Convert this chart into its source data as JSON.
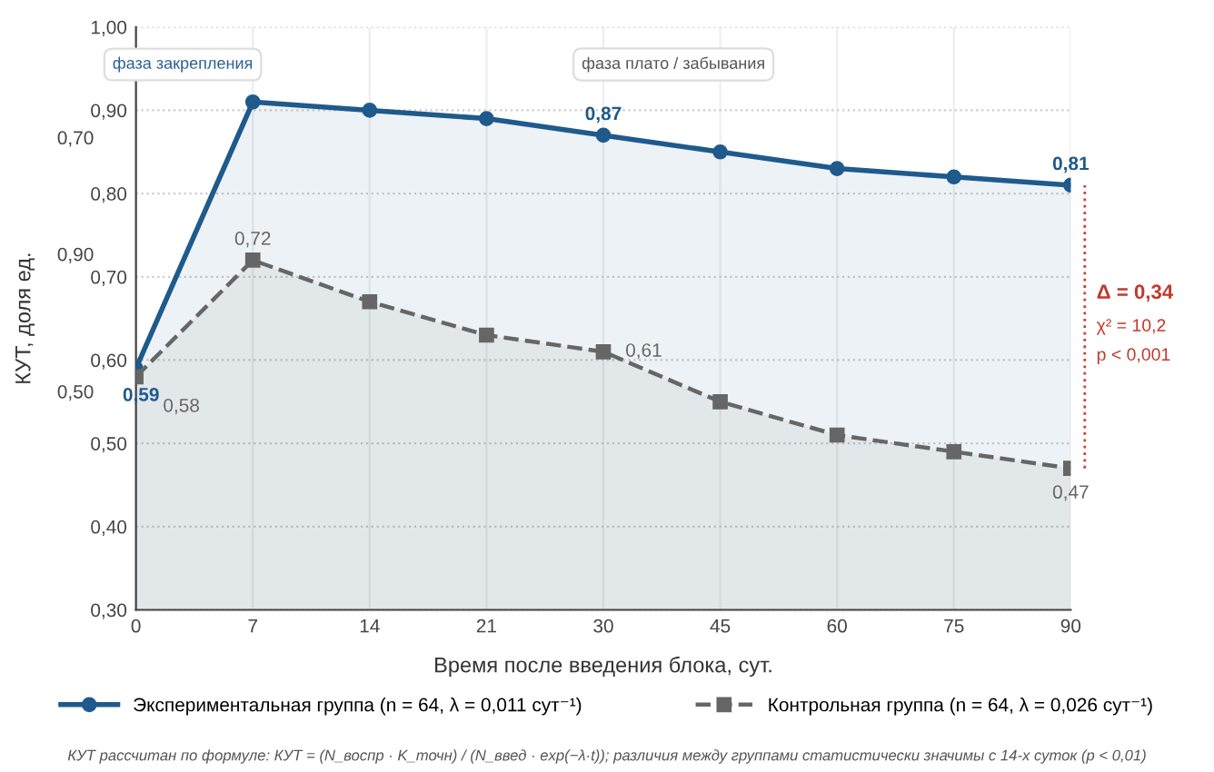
{
  "chart_data": {
    "type": "area",
    "xlabel": "Время после введения блока, сут.",
    "ylabel": "КУТ, доля ед.",
    "categories": [
      "0",
      "7",
      "14",
      "21",
      "30",
      "45",
      "60",
      "75",
      "90"
    ],
    "series": [
      {
        "name": "Экспериментальная группа (n = 64, λ = 0,011 сут⁻¹)",
        "color": "#1f5a8c",
        "marker": "circle",
        "line_style": "solid",
        "values": [
          0.59,
          0.91,
          0.9,
          0.89,
          0.87,
          0.85,
          0.83,
          0.82,
          0.81
        ],
        "value_labels": [
          "0,59",
          null,
          null,
          null,
          "0,87",
          null,
          null,
          null,
          "0,81"
        ]
      },
      {
        "name": "Контрольная группа (n = 64, λ = 0,026 сут⁻¹)",
        "color": "#666666",
        "marker": "square",
        "line_style": "dashed",
        "values": [
          0.58,
          0.72,
          0.67,
          0.63,
          0.61,
          0.55,
          0.51,
          0.49,
          0.47
        ],
        "value_labels": [
          "0,58",
          "0,72",
          null,
          null,
          "0,61",
          null,
          null,
          null,
          "0,47"
        ]
      }
    ],
    "ylim": [
      0.3,
      1.0
    ],
    "yticks": [
      {
        "value": 1.0,
        "label": "1,00"
      },
      {
        "value": 0.9,
        "label": "0,90"
      },
      {
        "value": 0.8,
        "label": "0,80"
      },
      {
        "value": 0.7,
        "label": "0,70"
      },
      {
        "value": 0.6,
        "label": "0,60"
      },
      {
        "value": 0.5,
        "label": "0,50"
      },
      {
        "value": 0.4,
        "label": "0,40"
      },
      {
        "value": 0.3,
        "label": "0,30"
      }
    ],
    "grid": true,
    "legend": "bottom",
    "annotations": [
      "фаза закрепления",
      "фаза плато / забывания",
      "Δ = 0,34",
      "χ² = 10,2",
      "p < 0,001",
      "КУТ рассчитан по формуле: КУТ = (N_воспр · K_точн) / (N_введ · exp(−λ·t)); различия между группами статистически значимы с 14-х суток (p < 0,01)",
      "0,70",
      "0,90",
      "0,50"
    ]
  }
}
